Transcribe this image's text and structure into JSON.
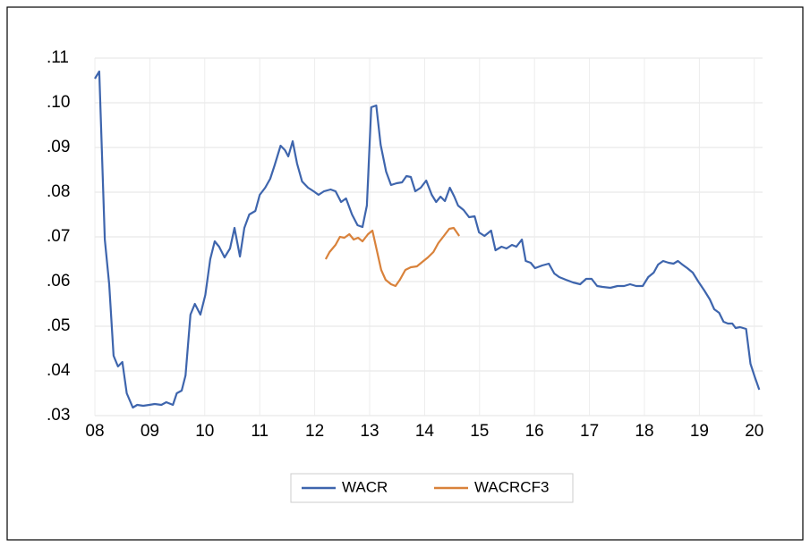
{
  "chart_data": {
    "type": "line",
    "xlim": [
      2008,
      2020.15
    ],
    "xticks": [
      {
        "value": 2008,
        "label": "08"
      },
      {
        "value": 2009,
        "label": "09"
      },
      {
        "value": 2010,
        "label": "10"
      },
      {
        "value": 2011,
        "label": "11"
      },
      {
        "value": 2012,
        "label": "12"
      },
      {
        "value": 2013,
        "label": "13"
      },
      {
        "value": 2014,
        "label": "14"
      },
      {
        "value": 2015,
        "label": "15"
      },
      {
        "value": 2016,
        "label": "16"
      },
      {
        "value": 2017,
        "label": "17"
      },
      {
        "value": 2018,
        "label": "18"
      },
      {
        "value": 2019,
        "label": "19"
      },
      {
        "value": 2020,
        "label": "20"
      }
    ],
    "ylim": [
      0.03,
      0.11
    ],
    "yticks": [
      {
        "value": 0.03,
        "label": ".03"
      },
      {
        "value": 0.04,
        "label": ".04"
      },
      {
        "value": 0.05,
        "label": ".05"
      },
      {
        "value": 0.06,
        "label": ".06"
      },
      {
        "value": 0.07,
        "label": ".07"
      },
      {
        "value": 0.08,
        "label": ".08"
      },
      {
        "value": 0.09,
        "label": ".09"
      },
      {
        "value": 0.1,
        "label": ".10"
      },
      {
        "value": 0.11,
        "label": ".11"
      }
    ],
    "grid": true,
    "legend": "bottom",
    "series": [
      {
        "name": "WACR",
        "color": "#3e65ad",
        "x": [
          2008.0,
          2008.08,
          2008.18,
          2008.26,
          2008.34,
          2008.42,
          2008.5,
          2008.58,
          2008.69,
          2008.77,
          2008.88,
          2008.99,
          2009.09,
          2009.21,
          2009.3,
          2009.42,
          2009.49,
          2009.58,
          2009.65,
          2009.74,
          2009.82,
          2009.92,
          2010.01,
          2010.1,
          2010.18,
          2010.26,
          2010.36,
          2010.46,
          2010.54,
          2010.64,
          2010.72,
          2010.81,
          2010.92,
          2011.0,
          2011.1,
          2011.19,
          2011.27,
          2011.38,
          2011.46,
          2011.52,
          2011.6,
          2011.68,
          2011.77,
          2011.88,
          2011.98,
          2012.07,
          2012.17,
          2012.29,
          2012.38,
          2012.48,
          2012.57,
          2012.68,
          2012.78,
          2012.87,
          2012.95,
          2013.03,
          2013.12,
          2013.2,
          2013.3,
          2013.39,
          2013.49,
          2013.59,
          2013.67,
          2013.75,
          2013.83,
          2013.93,
          2014.03,
          2014.13,
          2014.21,
          2014.29,
          2014.37,
          2014.46,
          2014.54,
          2014.61,
          2014.71,
          2014.81,
          2014.91,
          2014.99,
          2015.09,
          2015.21,
          2015.29,
          2015.4,
          2015.49,
          2015.59,
          2015.67,
          2015.77,
          2015.84,
          2015.93,
          2016.01,
          2016.14,
          2016.26,
          2016.36,
          2016.45,
          2016.57,
          2016.7,
          2016.83,
          2016.94,
          2017.04,
          2017.14,
          2017.24,
          2017.38,
          2017.51,
          2017.63,
          2017.74,
          2017.85,
          2017.97,
          2018.07,
          2018.17,
          2018.25,
          2018.34,
          2018.44,
          2018.53,
          2018.61,
          2018.69,
          2018.78,
          2018.88,
          2018.98,
          2019.09,
          2019.19,
          2019.27,
          2019.36,
          2019.44,
          2019.52,
          2019.6,
          2019.66,
          2019.74,
          2019.85,
          2019.93,
          2020.01,
          2020.09
        ],
        "values": [
          0.1054,
          0.107,
          0.0694,
          0.0594,
          0.0434,
          0.041,
          0.042,
          0.035,
          0.0318,
          0.0324,
          0.0322,
          0.0324,
          0.0326,
          0.0324,
          0.033,
          0.0324,
          0.035,
          0.0356,
          0.039,
          0.0526,
          0.055,
          0.0526,
          0.057,
          0.065,
          0.069,
          0.0678,
          0.0654,
          0.0674,
          0.072,
          0.0656,
          0.072,
          0.075,
          0.0758,
          0.0794,
          0.081,
          0.083,
          0.086,
          0.0904,
          0.0894,
          0.088,
          0.0914,
          0.0864,
          0.0824,
          0.081,
          0.0802,
          0.0794,
          0.0802,
          0.0806,
          0.0802,
          0.0778,
          0.0786,
          0.075,
          0.0726,
          0.0722,
          0.077,
          0.099,
          0.0994,
          0.0906,
          0.0846,
          0.0816,
          0.082,
          0.0822,
          0.0836,
          0.0834,
          0.0802,
          0.081,
          0.0826,
          0.0794,
          0.0778,
          0.079,
          0.078,
          0.081,
          0.079,
          0.077,
          0.076,
          0.0744,
          0.0746,
          0.071,
          0.0702,
          0.0714,
          0.067,
          0.0678,
          0.0674,
          0.0682,
          0.0678,
          0.0694,
          0.0646,
          0.0642,
          0.063,
          0.0636,
          0.064,
          0.0618,
          0.061,
          0.0604,
          0.0598,
          0.0594,
          0.0606,
          0.0606,
          0.059,
          0.0588,
          0.0586,
          0.059,
          0.059,
          0.0594,
          0.059,
          0.059,
          0.061,
          0.062,
          0.0638,
          0.0646,
          0.0642,
          0.064,
          0.0646,
          0.0638,
          0.063,
          0.062,
          0.06,
          0.058,
          0.056,
          0.0538,
          0.053,
          0.051,
          0.0506,
          0.0506,
          0.0496,
          0.0498,
          0.0494,
          0.0416,
          0.0386,
          0.0358
        ]
      },
      {
        "name": "WACRCF3",
        "color": "#d9823b",
        "x": [
          2012.2,
          2012.27,
          2012.38,
          2012.46,
          2012.54,
          2012.63,
          2012.71,
          2012.79,
          2012.87,
          2012.97,
          2013.05,
          2013.13,
          2013.21,
          2013.29,
          2013.39,
          2013.47,
          2013.55,
          2013.65,
          2013.75,
          2013.86,
          2013.96,
          2014.06,
          2014.16,
          2014.25,
          2014.35,
          2014.45,
          2014.53,
          2014.63
        ],
        "values": [
          0.065,
          0.0666,
          0.0682,
          0.07,
          0.0698,
          0.0706,
          0.0694,
          0.0698,
          0.069,
          0.0706,
          0.0714,
          0.067,
          0.0626,
          0.0604,
          0.0594,
          0.059,
          0.0604,
          0.0626,
          0.0632,
          0.0634,
          0.0644,
          0.0654,
          0.0666,
          0.0686,
          0.0702,
          0.0718,
          0.072,
          0.0702
        ]
      }
    ]
  }
}
